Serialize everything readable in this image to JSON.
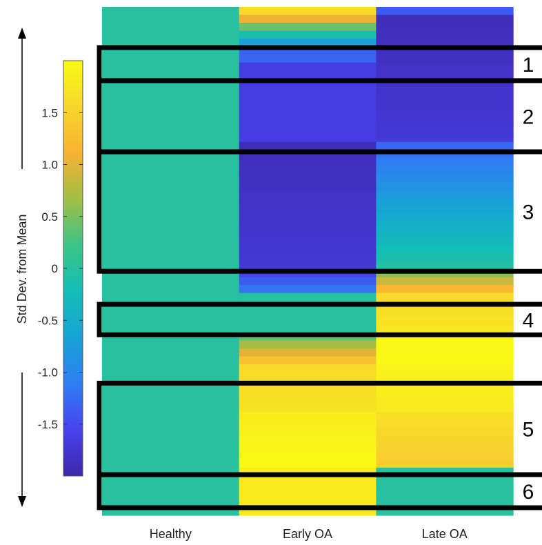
{
  "chart_data": {
    "type": "heatmap",
    "categories": [
      "Healthy",
      "Early OA",
      "Late OA"
    ],
    "colorbar": {
      "label": "Std Dev. from Mean",
      "ticks": [
        1.5,
        1.0,
        0.5,
        0,
        -0.5,
        -1.0,
        -1.5
      ],
      "tick_labels": [
        "1.5",
        "1.0",
        "0.5",
        "0",
        "-0.5",
        "-1.0",
        "-1.5"
      ],
      "range": [
        -2.0,
        2.0
      ],
      "colormap": [
        "#3e26a8",
        "#4743f0",
        "#2f7ef2",
        "#17a3d6",
        "#13bdb6",
        "#3cc487",
        "#9fbf44",
        "#f8b232",
        "#f8d62c",
        "#f9fb14"
      ]
    },
    "rows": 64,
    "series": [
      {
        "name": "Healthy",
        "segments": [
          {
            "from": 0,
            "to": 1,
            "values": [
              0,
              0
            ]
          }
        ]
      },
      {
        "name": "Early OA",
        "segments": [
          {
            "from": 0.0,
            "to": 0.01,
            "values": [
              1.6,
              1.6
            ]
          },
          {
            "from": 0.01,
            "to": 0.05,
            "values": [
              1.6,
              0.0
            ]
          },
          {
            "from": 0.05,
            "to": 0.08,
            "values": [
              0.0,
              -1.0
            ]
          },
          {
            "from": 0.08,
            "to": 0.11,
            "values": [
              -1.3,
              -1.3
            ]
          },
          {
            "from": 0.11,
            "to": 0.27,
            "values": [
              -1.65,
              -1.65
            ]
          },
          {
            "from": 0.27,
            "to": 0.52,
            "values": [
              -1.9,
              -1.7
            ]
          },
          {
            "from": 0.52,
            "to": 0.57,
            "values": [
              -1.6,
              -1.0
            ]
          },
          {
            "from": 0.57,
            "to": 0.64,
            "values": [
              0.0,
              0.0
            ]
          },
          {
            "from": 0.64,
            "to": 0.71,
            "values": [
              0.2,
              1.6
            ]
          },
          {
            "from": 0.71,
            "to": 0.79,
            "values": [
              1.6,
              1.7
            ]
          },
          {
            "from": 0.79,
            "to": 0.91,
            "values": [
              1.8,
              2.0
            ]
          },
          {
            "from": 0.91,
            "to": 1.0,
            "values": [
              1.8,
              1.8
            ]
          }
        ]
      },
      {
        "name": "Late OA",
        "segments": [
          {
            "from": 0.0,
            "to": 0.02,
            "values": [
              -1.3,
              -1.5
            ]
          },
          {
            "from": 0.02,
            "to": 0.27,
            "values": [
              -1.9,
              -1.7
            ]
          },
          {
            "from": 0.27,
            "to": 0.52,
            "values": [
              -1.3,
              0.0
            ]
          },
          {
            "from": 0.52,
            "to": 0.57,
            "values": [
              0.5,
              1.5
            ]
          },
          {
            "from": 0.57,
            "to": 0.64,
            "values": [
              1.6,
              1.75
            ]
          },
          {
            "from": 0.64,
            "to": 0.71,
            "values": [
              1.9,
              2.0
            ]
          },
          {
            "from": 0.71,
            "to": 0.79,
            "values": [
              1.9,
              1.8
            ]
          },
          {
            "from": 0.79,
            "to": 0.91,
            "values": [
              1.7,
              1.4
            ]
          },
          {
            "from": 0.91,
            "to": 1.0,
            "values": [
              0.0,
              0.0
            ]
          }
        ]
      }
    ],
    "regions": [
      {
        "label": "1",
        "from": 0.08,
        "to": 0.145
      },
      {
        "label": "2",
        "from": 0.145,
        "to": 0.285
      },
      {
        "label": "3",
        "from": 0.285,
        "to": 0.52
      },
      {
        "label": "4",
        "from": 0.585,
        "to": 0.645
      },
      {
        "label": "5",
        "from": 0.74,
        "to": 0.92
      },
      {
        "label": "6",
        "from": 0.92,
        "to": 0.985
      }
    ]
  }
}
